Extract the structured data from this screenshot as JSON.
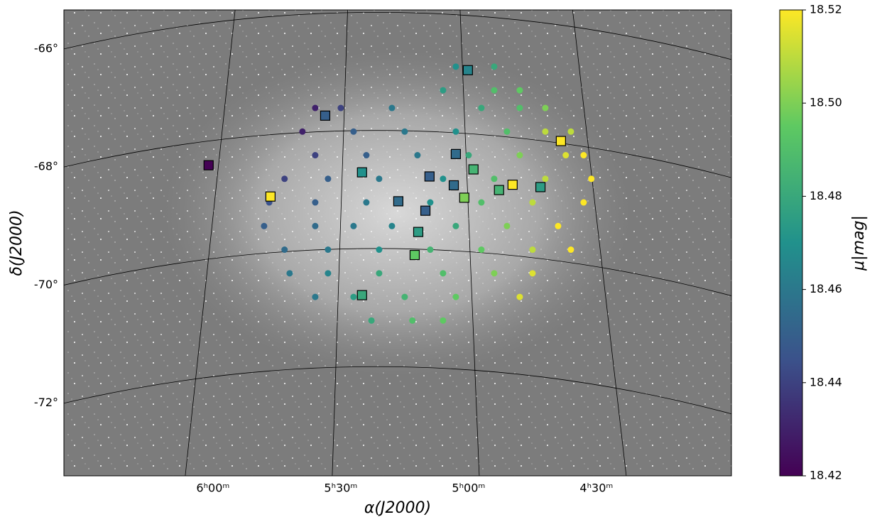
{
  "chart_data": {
    "type": "scatter",
    "xlabel": "α(J2000)",
    "ylabel": "δ(J2000)",
    "colorbar_label": "μ|mag|",
    "colormap": "viridis",
    "grid": true,
    "xlim": [
      6.583,
      3.972
    ],
    "ylim": [
      -65.34,
      -73.23
    ],
    "xticks": [
      {
        "value": 6.0,
        "label": "6ʰ00ᵐ"
      },
      {
        "value": 5.5,
        "label": "5ʰ30ᵐ"
      },
      {
        "value": 5.0,
        "label": "5ʰ00ᵐ"
      },
      {
        "value": 4.5,
        "label": "4ʰ30ᵐ"
      }
    ],
    "yticks": [
      {
        "value": -66,
        "label": "-66°"
      },
      {
        "value": -68,
        "label": "-68°"
      },
      {
        "value": -70,
        "label": "-70°"
      },
      {
        "value": -72,
        "label": "-72°"
      }
    ],
    "clim": [
      18.42,
      18.52
    ],
    "cticks": [
      18.42,
      18.44,
      18.46,
      18.48,
      {
        "value": 18.5,
        "label": "18.50"
      },
      18.52
    ],
    "circles": {
      "x": [
        5.6,
        5.5,
        5.3,
        4.95,
        4.8,
        4.7,
        5.65,
        5.45,
        5.25,
        5.05,
        4.85,
        4.7,
        4.6,
        5.6,
        5.4,
        5.2,
        5.0,
        4.8,
        4.62,
        4.55,
        5.72,
        5.55,
        5.35,
        5.1,
        4.9,
        4.7,
        4.52,
        5.78,
        5.6,
        5.4,
        5.15,
        4.95,
        4.75,
        4.55,
        5.8,
        5.6,
        5.45,
        5.3,
        5.05,
        4.85,
        4.65,
        5.72,
        5.55,
        5.35,
        5.15,
        4.95,
        4.75,
        4.6,
        5.7,
        5.55,
        5.35,
        5.1,
        4.9,
        4.75,
        5.6,
        5.45,
        5.25,
        5.05,
        4.8,
        5.38,
        5.22,
        5.1,
        5.05,
        4.9,
        5.1,
        4.9,
        4.8
      ],
      "y": [
        -67.0,
        -67.0,
        -67.0,
        -67.0,
        -67.0,
        -67.0,
        -67.4,
        -67.4,
        -67.4,
        -67.4,
        -67.4,
        -67.4,
        -67.4,
        -67.8,
        -67.8,
        -67.8,
        -67.8,
        -67.8,
        -67.8,
        -67.8,
        -68.2,
        -68.2,
        -68.2,
        -68.2,
        -68.2,
        -68.2,
        -68.2,
        -68.6,
        -68.6,
        -68.6,
        -68.6,
        -68.6,
        -68.6,
        -68.6,
        -69.0,
        -69.0,
        -69.0,
        -69.0,
        -69.0,
        -69.0,
        -69.0,
        -69.4,
        -69.4,
        -69.4,
        -69.4,
        -69.4,
        -69.4,
        -69.4,
        -69.8,
        -69.8,
        -69.8,
        -69.8,
        -69.8,
        -69.8,
        -70.2,
        -70.2,
        -70.2,
        -70.2,
        -70.2,
        -70.6,
        -70.6,
        -70.6,
        -66.3,
        -66.3,
        -66.7,
        -66.7,
        -66.7
      ],
      "mu": [
        18.43,
        18.44,
        18.46,
        18.48,
        18.49,
        18.5,
        18.43,
        18.45,
        18.46,
        18.47,
        18.49,
        18.51,
        18.51,
        18.44,
        18.45,
        18.46,
        18.48,
        18.5,
        18.515,
        18.52,
        18.44,
        18.45,
        18.46,
        18.47,
        18.49,
        18.51,
        18.52,
        18.445,
        18.45,
        18.46,
        18.47,
        18.49,
        18.51,
        18.52,
        18.45,
        18.455,
        18.46,
        18.465,
        18.48,
        18.5,
        18.52,
        18.455,
        18.46,
        18.47,
        18.485,
        18.495,
        18.51,
        18.52,
        18.46,
        18.465,
        18.48,
        18.49,
        18.5,
        18.515,
        18.46,
        18.475,
        18.485,
        18.495,
        18.515,
        18.48,
        18.49,
        18.495,
        18.47,
        18.48,
        18.475,
        18.49,
        18.495
      ]
    },
    "squares": {
      "x": [
        6.017,
        5.775,
        5.561,
        5.417,
        5.417,
        5.275,
        5.197,
        5.211,
        5.169,
        5.153,
        5.05,
        5.058,
        5.017,
        5.003,
        4.981,
        4.881,
        4.828,
        4.719,
        4.639
      ],
      "y": [
        -67.97,
        -68.5,
        -67.13,
        -68.09,
        -70.17,
        -68.58,
        -69.1,
        -69.49,
        -68.74,
        -68.16,
        -67.78,
        -68.31,
        -68.52,
        -66.36,
        -68.04,
        -68.39,
        -68.3,
        -68.34,
        -67.56
      ],
      "mu": [
        18.42,
        18.52,
        18.45,
        18.47,
        18.48,
        18.455,
        18.475,
        18.495,
        18.45,
        18.45,
        18.455,
        18.455,
        18.5,
        18.465,
        18.485,
        18.485,
        18.52,
        18.475,
        18.52
      ]
    }
  }
}
